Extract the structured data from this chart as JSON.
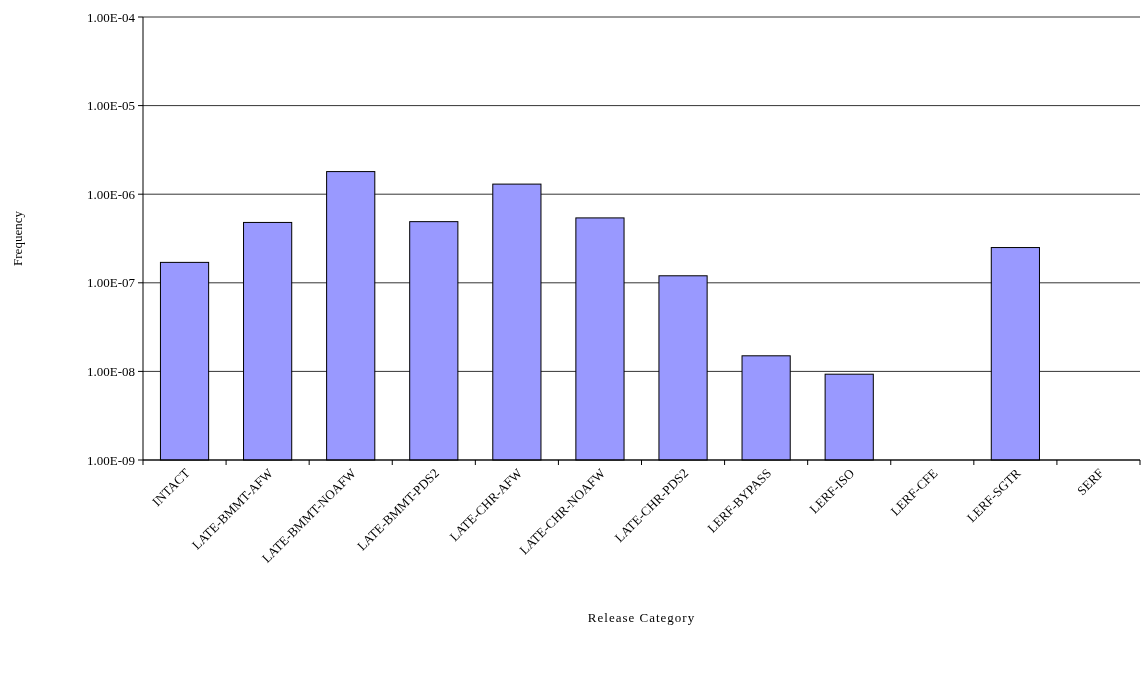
{
  "chart_data": {
    "type": "bar",
    "xlabel": "Release Category",
    "ylabel": "Frequency",
    "categories": [
      "INTACT",
      "LATE-BMMT-AFW",
      "LATE-BMMT-NOAFW",
      "LATE-BMMT-PDS2",
      "LATE-CHR-AFW",
      "LATE-CHR-NOAFW",
      "LATE-CHR-PDS2",
      "LERF-BYPASS",
      "LERF-ISO",
      "LERF-CFE",
      "LERF-SGTR",
      "SERF"
    ],
    "values": [
      1.7e-07,
      4.8e-07,
      1.8e-06,
      4.9e-07,
      1.3e-06,
      5.4e-07,
      1.2e-07,
      1.5e-08,
      9.3e-09,
      null,
      2.5e-07,
      null
    ],
    "color": "#9999ff",
    "log": true,
    "grid": "y",
    "ylim": [
      1e-09,
      0.0001
    ],
    "yticks": [
      {
        "value": 1e-09,
        "label": "1.00E-09"
      },
      {
        "value": 1e-08,
        "label": "1.00E-08"
      },
      {
        "value": 1e-07,
        "label": "1.00E-07"
      },
      {
        "value": 1e-06,
        "label": "1.00E-06"
      },
      {
        "value": 1e-05,
        "label": "1.00E-05"
      },
      {
        "value": 0.0001,
        "label": "1.00E-04"
      }
    ]
  }
}
